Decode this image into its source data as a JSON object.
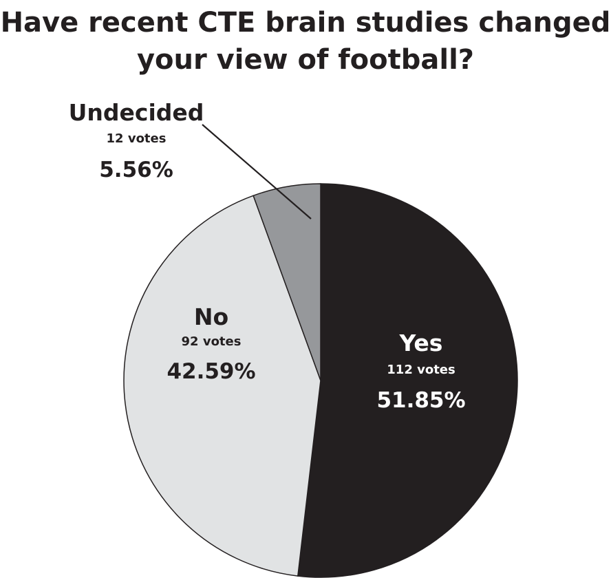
{
  "chart_data": {
    "type": "pie",
    "title_lines": [
      "Have recent CTE brain studies changed",
      "your view of football?"
    ],
    "slices": [
      {
        "name": "Yes",
        "votes": 112,
        "votes_label": "112 votes",
        "percent": 51.85,
        "percent_label": "51.85%",
        "color": "#231f20",
        "text_color": "#ffffff"
      },
      {
        "name": "No",
        "votes": 92,
        "votes_label": "92 votes",
        "percent": 42.59,
        "percent_label": "42.59%",
        "color": "#e1e3e4",
        "text_color": "#231f20"
      },
      {
        "name": "Undecided",
        "votes": 12,
        "votes_label": "12 votes",
        "percent": 5.56,
        "percent_label": "5.56%",
        "color": "#96989b",
        "text_color": "#231f20"
      }
    ],
    "start_angle": "12 o'clock",
    "direction": "clockwise",
    "legend": "none",
    "edge_color": "#231f20"
  }
}
